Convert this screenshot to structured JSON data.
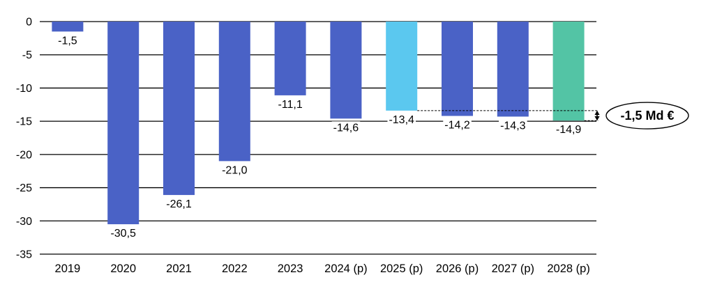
{
  "chart_data": {
    "type": "bar",
    "title": "",
    "xlabel": "",
    "ylabel": "",
    "categories": [
      "2019",
      "2020",
      "2021",
      "2022",
      "2023",
      "2024 (p)",
      "2025 (p)",
      "2026 (p)",
      "2027 (p)",
      "2028 (p)"
    ],
    "values": [
      -1.5,
      -30.5,
      -26.1,
      -21.0,
      -11.1,
      -14.6,
      -13.4,
      -14.2,
      -14.3,
      -14.9
    ],
    "value_labels": [
      "-1,5",
      "-30,5",
      "-26,1",
      "-21,0",
      "-11,1",
      "-14,6",
      "-13,4",
      "-14,2",
      "-14,3",
      "-14,9"
    ],
    "bar_colors": [
      "#4A62C6",
      "#4A62C6",
      "#4A62C6",
      "#4A62C6",
      "#4A62C6",
      "#4A62C6",
      "#5BC8EF",
      "#4A62C6",
      "#4A62C6",
      "#53C4A5"
    ],
    "ylim": [
      -35,
      0
    ],
    "ytick_step": 5,
    "ytick_labels": [
      "0",
      "-5",
      "-10",
      "-15",
      "-20",
      "-25",
      "-30",
      "-35"
    ],
    "grid": "horizontal",
    "legend": "none",
    "annotation": {
      "label": "-1,5 Md €",
      "from_category": "2025 (p)",
      "from_value": -13.4,
      "to_category": "2028 (p)",
      "to_value": -14.9
    },
    "colors": {
      "default_bar": "#4A62C6",
      "highlight_light_blue": "#5BC8EF",
      "highlight_green": "#53C4A5",
      "grid": "#000000",
      "text": "#000000",
      "annotation_outline": "#000000"
    }
  }
}
